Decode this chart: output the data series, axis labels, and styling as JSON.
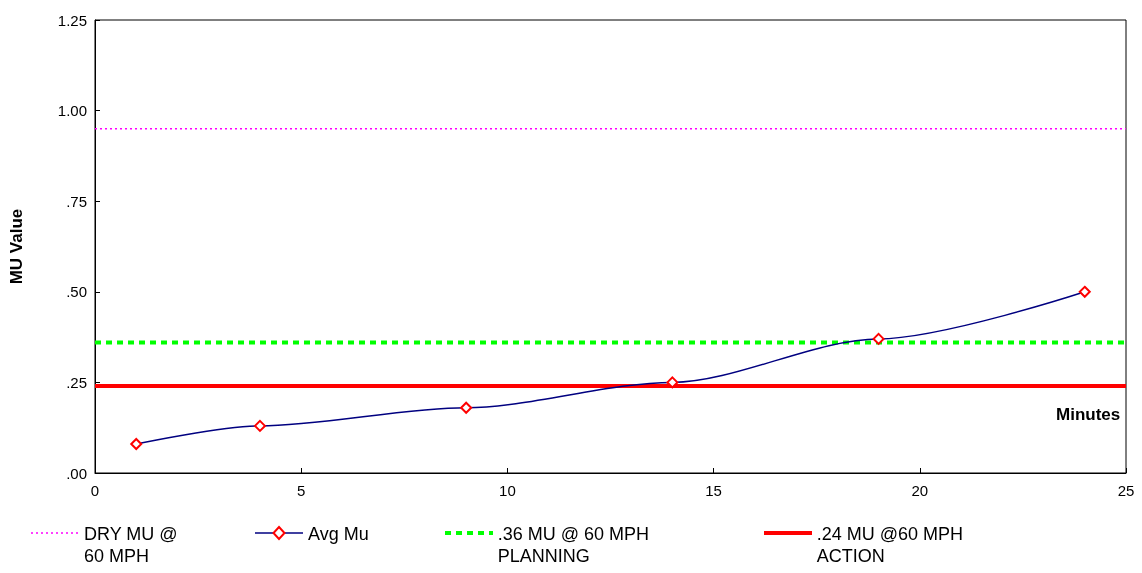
{
  "chart_data": {
    "type": "line",
    "xlabel": "Minutes",
    "ylabel": "MU Value",
    "xlim": [
      0,
      25
    ],
    "xticks": [
      0,
      5,
      10,
      15,
      20,
      25
    ],
    "ylim": [
      0,
      1.25
    ],
    "yticks": [
      {
        "value": 0,
        "label": ".00"
      },
      {
        "value": 0.25,
        "label": ".25"
      },
      {
        "value": 0.5,
        "label": ".50"
      },
      {
        "value": 0.75,
        "label": ".75"
      },
      {
        "value": 1,
        "label": "1.00"
      },
      {
        "value": 1.25,
        "label": "1.25"
      }
    ],
    "grid": false,
    "legend": "bottom",
    "series": [
      {
        "name": "DRY MU @ 60 MPH",
        "color": "#ff00ff",
        "x": [
          0,
          25
        ],
        "values": [
          0.95,
          0.95
        ],
        "marker": "none",
        "line_style": "dotted"
      },
      {
        "name": "Avg Mu",
        "color": "#000080",
        "colors": [
          "#ff0000",
          "#ff0000",
          "#ff0000",
          "#ff0000",
          "#ff0000",
          "#ff0000"
        ],
        "x": [
          1,
          4,
          9,
          14,
          19,
          24
        ],
        "values": [
          0.08,
          0.13,
          0.18,
          0.25,
          0.37,
          0.5
        ],
        "marker": "diamond",
        "line_style": "solid"
      },
      {
        "name": ".36 MU @ 60 MPH PLANNING",
        "color": "#00ff00",
        "x": [
          0,
          25
        ],
        "values": [
          0.36,
          0.36
        ],
        "marker": "none",
        "line_style": "dashed"
      },
      {
        "name": ".24 MU @60 MPH ACTION",
        "color": "#ff0000",
        "x": [
          0,
          25
        ],
        "values": [
          0.24,
          0.24
        ],
        "marker": "none",
        "line_style": "solid"
      }
    ]
  }
}
